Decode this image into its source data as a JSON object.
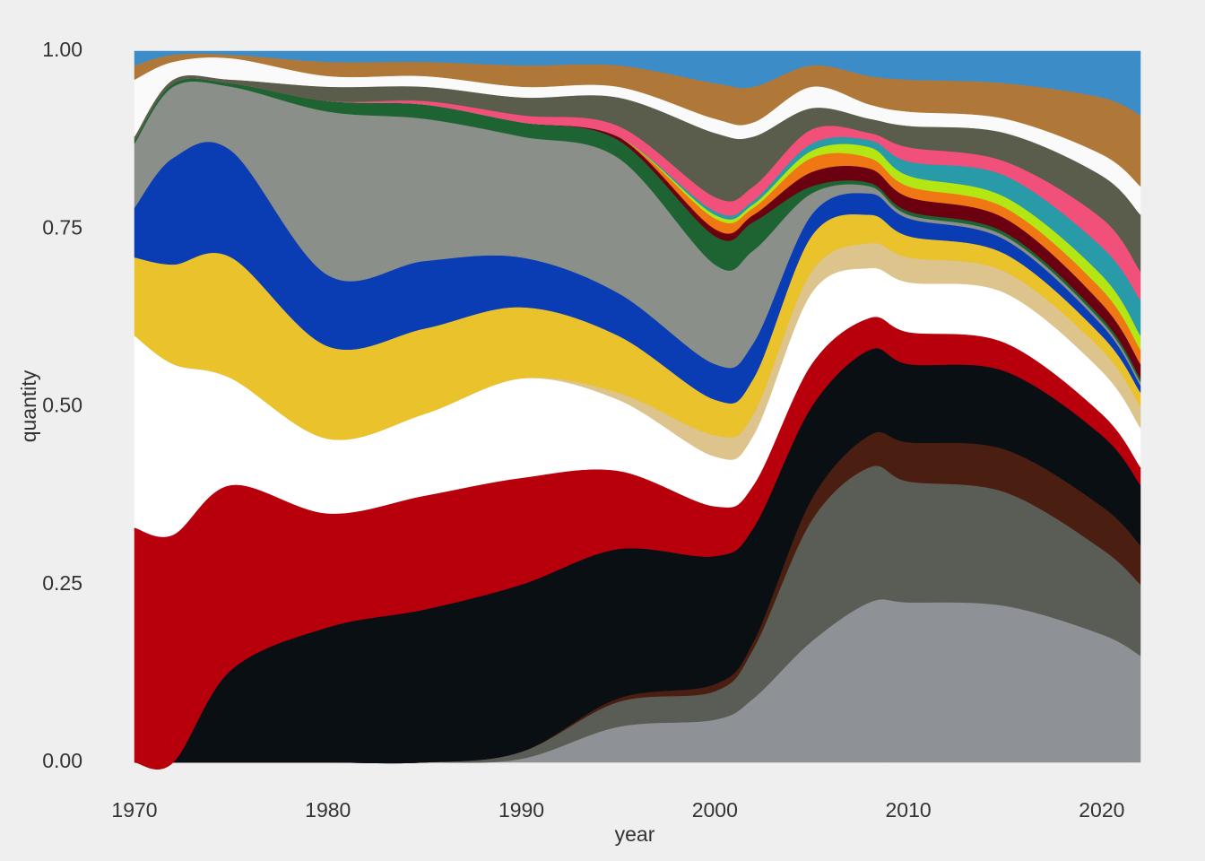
{
  "chart_data": {
    "type": "stacked-area",
    "x_label": "year",
    "y_label": "quantity",
    "x": [
      1970,
      1972,
      1975,
      1980,
      1985,
      1990,
      1995,
      2000,
      2002,
      2005,
      2008,
      2010,
      2015,
      2020,
      2022
    ],
    "xlim": [
      1970,
      2022
    ],
    "xticks": [
      1970,
      1980,
      1990,
      2000,
      2010,
      2020
    ],
    "ylim": [
      0,
      1
    ],
    "yticks": [
      {
        "value": 0,
        "label": "0.00"
      },
      {
        "value": 0.25,
        "label": "0.25"
      },
      {
        "value": 0.5,
        "label": "0.50"
      },
      {
        "value": 0.75,
        "label": "0.75"
      },
      {
        "value": 1,
        "label": "1.00"
      }
    ],
    "series": [
      {
        "color": "#8e9296",
        "values": [
          0,
          0,
          0,
          0,
          0,
          0.005,
          0.05,
          0.06,
          0.09,
          0.17,
          0.225,
          0.225,
          0.22,
          0.18,
          0.15
        ]
      },
      {
        "color": "#5a5d55",
        "values": [
          0,
          0,
          0,
          0,
          0,
          0.01,
          0.035,
          0.04,
          0.07,
          0.17,
          0.19,
          0.17,
          0.16,
          0.12,
          0.1
        ]
      },
      {
        "color": "#4a1e10",
        "values": [
          0,
          0,
          0,
          0,
          0,
          0,
          0.005,
          0.01,
          0.01,
          0.03,
          0.045,
          0.055,
          0.06,
          0.06,
          0.055
        ]
      },
      {
        "color": "#0a0f14",
        "values": [
          0,
          0,
          0.13,
          0.19,
          0.215,
          0.235,
          0.21,
          0.18,
          0.16,
          0.13,
          0.12,
          0.11,
          0.11,
          0.1,
          0.085
        ]
      },
      {
        "color": "#b8000c",
        "values": [
          0.33,
          0.32,
          0.26,
          0.16,
          0.16,
          0.15,
          0.11,
          0.07,
          0.06,
          0.06,
          0.045,
          0.045,
          0.04,
          0.03,
          0.025
        ]
      },
      {
        "color": "#ffffff",
        "values": [
          0.27,
          0.24,
          0.15,
          0.105,
          0.115,
          0.14,
          0.1,
          0.07,
          0.07,
          0.1,
          0.07,
          0.07,
          0.07,
          0.06,
          0.055
        ]
      },
      {
        "color": "#dcc48c",
        "values": [
          0,
          0,
          0,
          0,
          0,
          0,
          0.01,
          0.03,
          0.03,
          0.03,
          0.035,
          0.035,
          0.03,
          0.03,
          0.03
        ]
      },
      {
        "color": "#eac22c",
        "values": [
          0.11,
          0.14,
          0.17,
          0.13,
          0.12,
          0.1,
          0.08,
          0.05,
          0.05,
          0.05,
          0.04,
          0.03,
          0.025,
          0.02,
          0.02
        ]
      },
      {
        "color": "#0a3cb4",
        "values": [
          0.07,
          0.15,
          0.15,
          0.1,
          0.095,
          0.07,
          0.06,
          0.05,
          0.05,
          0.03,
          0.03,
          0.025,
          0.02,
          0.015,
          0.01
        ]
      },
      {
        "color": "#8a8f8a",
        "values": [
          0.09,
          0.1,
          0.09,
          0.23,
          0.2,
          0.17,
          0.19,
          0.14,
          0.13,
          0.03,
          0.01,
          0.005,
          0.005,
          0.005,
          0.005
        ]
      },
      {
        "color": "#1e6432",
        "values": [
          0.005,
          0.005,
          0.005,
          0.015,
          0.02,
          0.02,
          0.025,
          0.04,
          0.04,
          0.01,
          0.005,
          0.005,
          0.005,
          0.005,
          0.005
        ]
      },
      {
        "color": "#6a0010",
        "values": [
          0,
          0,
          0,
          0,
          0,
          0,
          0.005,
          0.01,
          0.01,
          0.02,
          0.02,
          0.02,
          0.02,
          0.02,
          0.02
        ]
      },
      {
        "color": "#f07814",
        "values": [
          0,
          0,
          0,
          0,
          0,
          0,
          0,
          0.015,
          0.01,
          0.02,
          0.015,
          0.015,
          0.015,
          0.02,
          0.02
        ]
      },
      {
        "color": "#b4e614",
        "values": [
          0,
          0,
          0,
          0,
          0,
          0,
          0,
          0.005,
          0.005,
          0.01,
          0.015,
          0.015,
          0.015,
          0.02,
          0.02
        ]
      },
      {
        "color": "#289aa8",
        "values": [
          0,
          0,
          0,
          0,
          0,
          0,
          0,
          0.005,
          0.005,
          0.01,
          0.01,
          0.02,
          0.03,
          0.04,
          0.05
        ]
      },
      {
        "color": "#f0507a",
        "values": [
          0,
          0,
          0,
          0,
          0.005,
          0.01,
          0.015,
          0.02,
          0.02,
          0.02,
          0.01,
          0.02,
          0.02,
          0.04,
          0.04
        ]
      },
      {
        "color": "#5a5d4b",
        "values": [
          0.005,
          0.005,
          0.005,
          0.02,
          0.02,
          0.025,
          0.04,
          0.09,
          0.07,
          0.03,
          0.02,
          0.03,
          0.04,
          0.06,
          0.08
        ]
      },
      {
        "color": "#fafafa",
        "values": [
          0.08,
          0.025,
          0.03,
          0.015,
          0.015,
          0.015,
          0.015,
          0.02,
          0.02,
          0.03,
          0.02,
          0.02,
          0.02,
          0.03,
          0.04
        ]
      },
      {
        "color": "#b07838",
        "values": [
          0.02,
          0.01,
          0.005,
          0.02,
          0.02,
          0.03,
          0.03,
          0.05,
          0.05,
          0.03,
          0.04,
          0.045,
          0.05,
          0.08,
          0.1
        ]
      },
      {
        "color": "#3c8cc8",
        "values": [
          0.02,
          0.005,
          0.005,
          0.015,
          0.015,
          0.02,
          0.02,
          0.045,
          0.05,
          0.02,
          0.035,
          0.04,
          0.045,
          0.065,
          0.09
        ]
      }
    ]
  }
}
